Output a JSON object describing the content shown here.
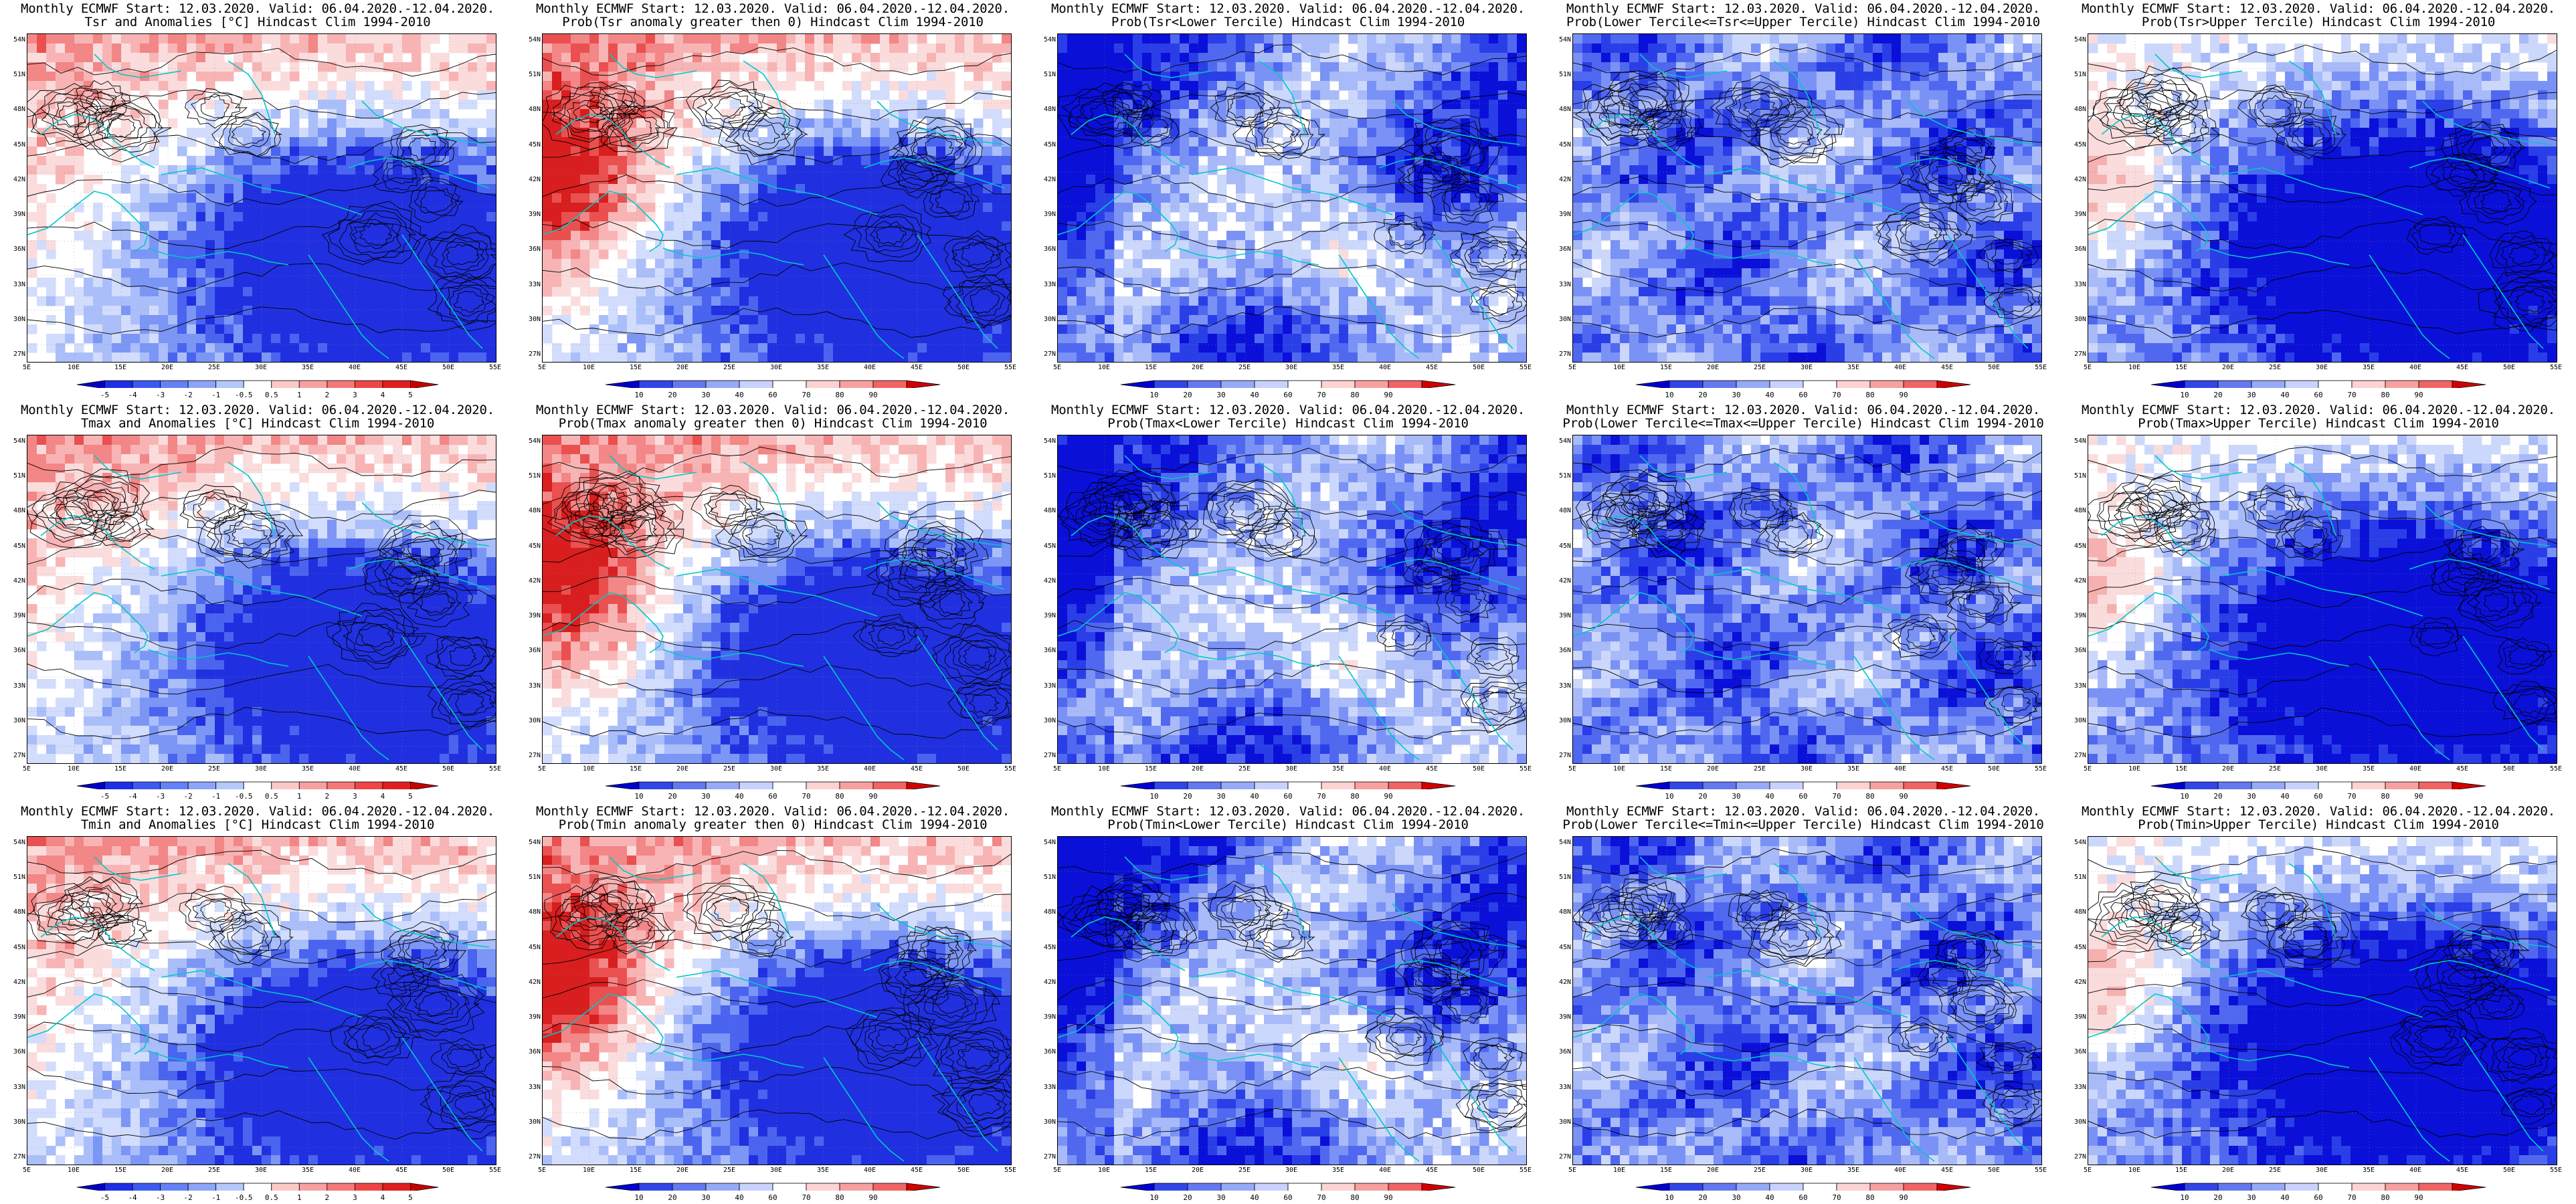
{
  "panels": [
    {
      "row": 0,
      "col": 0,
      "title1": "Monthly ECMWF Start: 12.03.2020. Valid: 06.04.2020.-12.04.2020.",
      "title2": "Tsr and Anomalies [°C] Hindcast Clim 1994-2010",
      "variable": "Tsr",
      "kind": "anomaly"
    },
    {
      "row": 0,
      "col": 1,
      "title1": "Monthly ECMWF Start: 12.03.2020. Valid: 06.04.2020.-12.04.2020.",
      "title2": "Prob(Tsr anomaly greater then 0) Hindcast Clim 1994-2010",
      "variable": "Tsr",
      "kind": "prob_pos"
    },
    {
      "row": 0,
      "col": 2,
      "title1": "Monthly ECMWF Start: 12.03.2020. Valid: 06.04.2020.-12.04.2020.",
      "title2": "Prob(Tsr<Lower Tercile) Hindcast Clim 1994-2010",
      "variable": "Tsr",
      "kind": "lower"
    },
    {
      "row": 0,
      "col": 3,
      "title1": "Monthly ECMWF Start: 12.03.2020. Valid: 06.04.2020.-12.04.2020.",
      "title2": "Prob(Lower Tercile<=Tsr<=Upper Tercile) Hindcast Clim 1994-2010",
      "variable": "Tsr",
      "kind": "middle"
    },
    {
      "row": 0,
      "col": 4,
      "title1": "Monthly ECMWF Start: 12.03.2020. Valid: 06.04.2020.-12.04.2020.",
      "title2": "Prob(Tsr>Upper Tercile) Hindcast Clim 1994-2010",
      "variable": "Tsr",
      "kind": "upper"
    },
    {
      "row": 1,
      "col": 0,
      "title1": "Monthly ECMWF Start: 12.03.2020. Valid: 06.04.2020.-12.04.2020.",
      "title2": "Tmax and Anomalies [°C] Hindcast Clim 1994-2010",
      "variable": "Tmax",
      "kind": "anomaly"
    },
    {
      "row": 1,
      "col": 1,
      "title1": "Monthly ECMWF Start: 12.03.2020. Valid: 06.04.2020.-12.04.2020.",
      "title2": "Prob(Tmax anomaly greater then 0) Hindcast Clim 1994-2010",
      "variable": "Tmax",
      "kind": "prob_pos"
    },
    {
      "row": 1,
      "col": 2,
      "title1": "Monthly ECMWF Start: 12.03.2020. Valid: 06.04.2020.-12.04.2020.",
      "title2": "Prob(Tmax<Lower Tercile) Hindcast Clim 1994-2010",
      "variable": "Tmax",
      "kind": "lower"
    },
    {
      "row": 1,
      "col": 3,
      "title1": "Monthly ECMWF Start: 12.03.2020. Valid: 06.04.2020.-12.04.2020.",
      "title2": "Prob(Lower Tercile<=Tmax<=Upper Tercile) Hindcast Clim 1994-2010",
      "variable": "Tmax",
      "kind": "middle"
    },
    {
      "row": 1,
      "col": 4,
      "title1": "Monthly ECMWF Start: 12.03.2020. Valid: 06.04.2020.-12.04.2020.",
      "title2": "Prob(Tmax>Upper Tercile) Hindcast Clim 1994-2010",
      "variable": "Tmax",
      "kind": "upper"
    },
    {
      "row": 2,
      "col": 0,
      "title1": "Monthly ECMWF Start: 12.03.2020. Valid: 06.04.2020.-12.04.2020.",
      "title2": "Tmin and Anomalies [°C] Hindcast Clim 1994-2010",
      "variable": "Tmin",
      "kind": "anomaly"
    },
    {
      "row": 2,
      "col": 1,
      "title1": "Monthly ECMWF Start: 12.03.2020. Valid: 06.04.2020.-12.04.2020.",
      "title2": "Prob(Tmin anomaly greater then 0) Hindcast Clim 1994-2010",
      "variable": "Tmin",
      "kind": "prob_pos"
    },
    {
      "row": 2,
      "col": 2,
      "title1": "Monthly ECMWF Start: 12.03.2020. Valid: 06.04.2020.-12.04.2020.",
      "title2": "Prob(Tmin<Lower Tercile) Hindcast Clim 1994-2010",
      "variable": "Tmin",
      "kind": "lower"
    },
    {
      "row": 2,
      "col": 3,
      "title1": "Monthly ECMWF Start: 12.03.2020. Valid: 06.04.2020.-12.04.2020.",
      "title2": "Prob(Lower Tercile<=Tmin<=Upper Tercile) Hindcast Clim 1994-2010",
      "variable": "Tmin",
      "kind": "middle"
    },
    {
      "row": 2,
      "col": 4,
      "title1": "Monthly ECMWF Start: 12.03.2020. Valid: 06.04.2020.-12.04.2020.",
      "title2": "Prob(Tmin>Upper Tercile) Hindcast Clim 1994-2010",
      "variable": "Tmin",
      "kind": "upper"
    }
  ],
  "lat_labels": [
    "54N",
    "51N",
    "48N",
    "45N",
    "42N",
    "39N",
    "36N",
    "33N",
    "30N",
    "27N"
  ],
  "lon_labels": [
    "5E",
    "10E",
    "15E",
    "20E",
    "25E",
    "30E",
    "35E",
    "40E",
    "45E",
    "50E",
    "55E"
  ],
  "anomaly_colorbar": {
    "labels": [
      "-5",
      "-4",
      "-3",
      "-2",
      "-1",
      "-0.5",
      "0.5",
      "1",
      "2",
      "3",
      "4",
      "5"
    ],
    "colors": [
      "#0000c8",
      "#1e2ee6",
      "#3c5af0",
      "#6482f5",
      "#8ca5f8",
      "#b4c8fb",
      "#ffffff",
      "#fbc8c8",
      "#f8a0a0",
      "#f57878",
      "#ee4646",
      "#e01e1e",
      "#c80000"
    ]
  },
  "probability_colorbar": {
    "labels": [
      "10",
      "20",
      "30",
      "40",
      "60",
      "70",
      "80",
      "90"
    ],
    "colors": [
      "#0000d2",
      "#3246e6",
      "#6478f0",
      "#96aaf8",
      "#c8d2fc",
      "#ffffff",
      "#fcd2d2",
      "#f8a0a0",
      "#f06464",
      "#d20000"
    ]
  },
  "coastline_color": "#00c8c8",
  "contour_color": "#000000"
}
